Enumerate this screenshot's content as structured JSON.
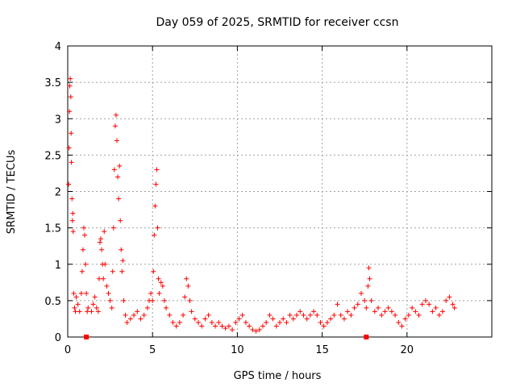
{
  "chart_data": {
    "type": "scatter",
    "title": "Day 059 of 2025, SRMTID for receiver ccsn",
    "xlabel": "GPS time / hours",
    "ylabel": "SRMTID / TECUs",
    "xlim": [
      0,
      25
    ],
    "ylim": [
      0,
      4
    ],
    "x_ticks": [
      0,
      5,
      10,
      15,
      20
    ],
    "x_tick_labels": [
      "0",
      "5",
      "10",
      "15",
      "20"
    ],
    "y_ticks": [
      0,
      0.5,
      1,
      1.5,
      2,
      2.5,
      3,
      3.5,
      4
    ],
    "y_tick_labels": [
      "0",
      "0.5",
      "1",
      "1.5",
      "2",
      "2.5",
      "3",
      "3.5",
      "4"
    ],
    "grid": true,
    "marker": "plus",
    "color": "#ff0000",
    "series": [
      {
        "name": "SRMTID",
        "points": [
          [
            0.05,
            2.1
          ],
          [
            0.08,
            2.6
          ],
          [
            0.1,
            3.1
          ],
          [
            0.12,
            3.45
          ],
          [
            0.15,
            3.55
          ],
          [
            0.18,
            3.3
          ],
          [
            0.2,
            2.8
          ],
          [
            0.22,
            2.4
          ],
          [
            0.25,
            1.9
          ],
          [
            0.28,
            1.6
          ],
          [
            0.3,
            1.7
          ],
          [
            0.32,
            1.45
          ],
          [
            0.35,
            0.6
          ],
          [
            0.4,
            0.4
          ],
          [
            0.45,
            0.35
          ],
          [
            0.5,
            0.55
          ],
          [
            0.6,
            0.45
          ],
          [
            0.7,
            0.35
          ],
          [
            0.8,
            0.6
          ],
          [
            0.85,
            0.9
          ],
          [
            0.9,
            1.2
          ],
          [
            0.95,
            1.5
          ],
          [
            1.0,
            1.4
          ],
          [
            1.05,
            1.0
          ],
          [
            1.1,
            0.6
          ],
          [
            1.15,
            0.35
          ],
          [
            1.2,
            0.4
          ],
          [
            1.4,
            0.35
          ],
          [
            1.5,
            0.45
          ],
          [
            1.6,
            0.55
          ],
          [
            1.7,
            0.4
          ],
          [
            1.8,
            0.35
          ],
          [
            1.85,
            0.8
          ],
          [
            1.9,
            1.3
          ],
          [
            1.95,
            1.35
          ],
          [
            2.0,
            1.2
          ],
          [
            2.05,
            1.0
          ],
          [
            2.1,
            0.8
          ],
          [
            2.15,
            1.45
          ],
          [
            2.2,
            1.0
          ],
          [
            2.3,
            0.7
          ],
          [
            2.4,
            0.6
          ],
          [
            2.5,
            0.5
          ],
          [
            2.6,
            0.4
          ],
          [
            2.65,
            0.9
          ],
          [
            2.7,
            1.5
          ],
          [
            2.75,
            2.3
          ],
          [
            2.8,
            2.9
          ],
          [
            2.85,
            3.05
          ],
          [
            2.9,
            2.7
          ],
          [
            2.95,
            2.2
          ],
          [
            3.0,
            1.9
          ],
          [
            3.05,
            2.35
          ],
          [
            3.1,
            1.6
          ],
          [
            3.15,
            1.2
          ],
          [
            3.2,
            0.9
          ],
          [
            3.25,
            1.05
          ],
          [
            3.3,
            0.5
          ],
          [
            3.4,
            0.3
          ],
          [
            3.5,
            0.2
          ],
          [
            3.7,
            0.25
          ],
          [
            3.9,
            0.3
          ],
          [
            4.1,
            0.35
          ],
          [
            4.3,
            0.25
          ],
          [
            4.5,
            0.3
          ],
          [
            4.7,
            0.4
          ],
          [
            4.8,
            0.5
          ],
          [
            4.9,
            0.6
          ],
          [
            5.0,
            0.5
          ],
          [
            5.05,
            0.9
          ],
          [
            5.1,
            1.4
          ],
          [
            5.15,
            1.8
          ],
          [
            5.2,
            2.1
          ],
          [
            5.25,
            2.3
          ],
          [
            5.3,
            1.5
          ],
          [
            5.35,
            0.8
          ],
          [
            5.4,
            0.6
          ],
          [
            5.5,
            0.75
          ],
          [
            5.6,
            0.7
          ],
          [
            5.7,
            0.5
          ],
          [
            5.8,
            0.4
          ],
          [
            6.0,
            0.3
          ],
          [
            6.2,
            0.2
          ],
          [
            6.4,
            0.15
          ],
          [
            6.6,
            0.2
          ],
          [
            6.8,
            0.3
          ],
          [
            6.9,
            0.55
          ],
          [
            7.0,
            0.8
          ],
          [
            7.1,
            0.7
          ],
          [
            7.2,
            0.5
          ],
          [
            7.3,
            0.35
          ],
          [
            7.5,
            0.25
          ],
          [
            7.7,
            0.2
          ],
          [
            7.9,
            0.15
          ],
          [
            8.1,
            0.25
          ],
          [
            8.3,
            0.3
          ],
          [
            8.5,
            0.2
          ],
          [
            8.7,
            0.15
          ],
          [
            8.9,
            0.2
          ],
          [
            9.1,
            0.15
          ],
          [
            9.3,
            0.12
          ],
          [
            9.5,
            0.15
          ],
          [
            9.7,
            0.1
          ],
          [
            9.9,
            0.2
          ],
          [
            10.1,
            0.25
          ],
          [
            10.3,
            0.3
          ],
          [
            10.5,
            0.2
          ],
          [
            10.7,
            0.15
          ],
          [
            10.9,
            0.1
          ],
          [
            11.1,
            0.08
          ],
          [
            11.3,
            0.1
          ],
          [
            11.5,
            0.15
          ],
          [
            11.7,
            0.2
          ],
          [
            11.9,
            0.3
          ],
          [
            12.1,
            0.25
          ],
          [
            12.3,
            0.15
          ],
          [
            12.5,
            0.2
          ],
          [
            12.7,
            0.25
          ],
          [
            12.9,
            0.2
          ],
          [
            13.1,
            0.3
          ],
          [
            13.3,
            0.25
          ],
          [
            13.5,
            0.3
          ],
          [
            13.7,
            0.35
          ],
          [
            13.9,
            0.3
          ],
          [
            14.1,
            0.25
          ],
          [
            14.3,
            0.3
          ],
          [
            14.5,
            0.35
          ],
          [
            14.7,
            0.3
          ],
          [
            14.9,
            0.2
          ],
          [
            15.1,
            0.15
          ],
          [
            15.3,
            0.2
          ],
          [
            15.5,
            0.25
          ],
          [
            15.7,
            0.3
          ],
          [
            15.9,
            0.45
          ],
          [
            16.1,
            0.3
          ],
          [
            16.3,
            0.25
          ],
          [
            16.5,
            0.35
          ],
          [
            16.7,
            0.3
          ],
          [
            16.9,
            0.4
          ],
          [
            17.1,
            0.45
          ],
          [
            17.3,
            0.6
          ],
          [
            17.5,
            0.5
          ],
          [
            17.6,
            0.4
          ],
          [
            17.7,
            0.7
          ],
          [
            17.75,
            0.95
          ],
          [
            17.8,
            0.8
          ],
          [
            17.9,
            0.5
          ],
          [
            18.1,
            0.35
          ],
          [
            18.3,
            0.4
          ],
          [
            18.5,
            0.3
          ],
          [
            18.7,
            0.35
          ],
          [
            18.9,
            0.4
          ],
          [
            19.1,
            0.35
          ],
          [
            19.3,
            0.3
          ],
          [
            19.5,
            0.2
          ],
          [
            19.7,
            0.15
          ],
          [
            19.9,
            0.25
          ],
          [
            20.1,
            0.3
          ],
          [
            20.3,
            0.4
          ],
          [
            20.5,
            0.35
          ],
          [
            20.7,
            0.3
          ],
          [
            20.9,
            0.45
          ],
          [
            21.1,
            0.5
          ],
          [
            21.3,
            0.45
          ],
          [
            21.5,
            0.35
          ],
          [
            21.7,
            0.4
          ],
          [
            21.9,
            0.3
          ],
          [
            22.1,
            0.35
          ],
          [
            22.3,
            0.5
          ],
          [
            22.5,
            0.55
          ],
          [
            22.7,
            0.45
          ],
          [
            22.8,
            0.4
          ]
        ]
      }
    ],
    "annotations": [
      {
        "type": "square_marker",
        "x": 1.1,
        "y": 0.0
      },
      {
        "type": "square_marker",
        "x": 17.6,
        "y": 0.0
      }
    ]
  }
}
